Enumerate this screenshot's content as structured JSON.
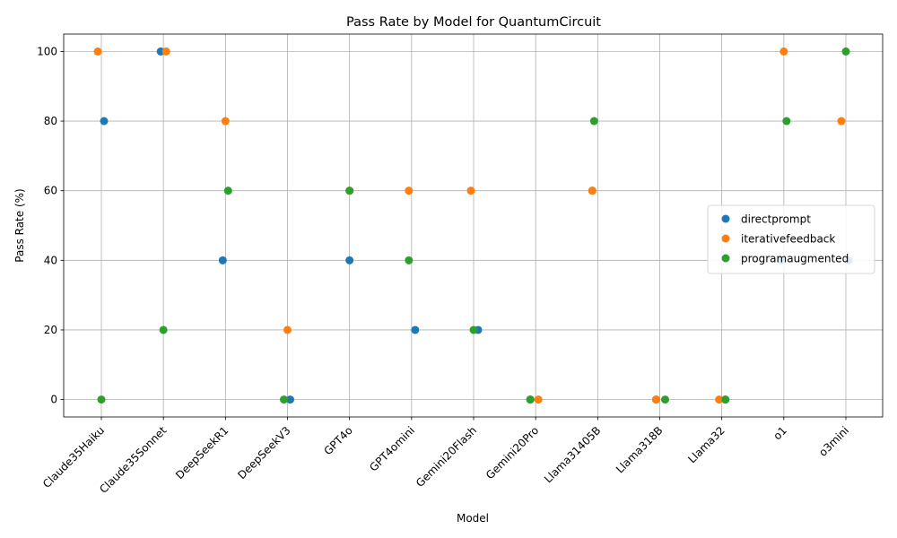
{
  "chart_data": {
    "type": "scatter",
    "title": "Pass Rate by Model for QuantumCircuit",
    "xlabel": "Model",
    "ylabel": "Pass Rate (%)",
    "categories": [
      "Claude35Haiku",
      "Claude35Sonnet",
      "DeepSeekR1",
      "DeepSeekV3",
      "GPT4o",
      "GPT4omini",
      "Gemini20Flash",
      "Gemini20Pro",
      "Llama31405B",
      "Llama318B",
      "Llama32",
      "o1",
      "o3mini"
    ],
    "ylim": [
      -5,
      105
    ],
    "yticks": [
      0,
      20,
      40,
      60,
      80,
      100
    ],
    "grid": true,
    "legend_position": "center-right",
    "series": [
      {
        "name": "directprompt",
        "color": "#1f77b4",
        "values": [
          80,
          100,
          40,
          0,
          40,
          20,
          20,
          0,
          60,
          0,
          0,
          40,
          40
        ]
      },
      {
        "name": "iterativefeedback",
        "color": "#ff7f0e",
        "values": [
          100,
          100,
          80,
          20,
          60,
          60,
          60,
          0,
          60,
          0,
          0,
          100,
          80
        ]
      },
      {
        "name": "programaugmented",
        "color": "#2ca02c",
        "values": [
          0,
          20,
          60,
          0,
          60,
          40,
          20,
          0,
          80,
          0,
          0,
          80,
          100
        ]
      }
    ]
  }
}
